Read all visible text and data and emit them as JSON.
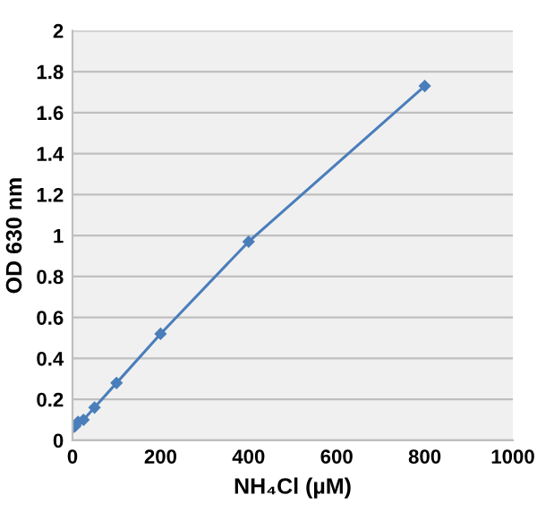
{
  "chart_data": {
    "type": "line",
    "xlabel": "NH₄Cl (µM)",
    "ylabel": "OD 630 nm",
    "x": [
      0,
      6.25,
      12.5,
      25,
      50,
      100,
      200,
      400,
      800
    ],
    "series": [
      {
        "color": "#4a7ebb",
        "values": [
          0.06,
          0.07,
          0.09,
          0.1,
          0.16,
          0.28,
          0.52,
          0.97,
          1.73
        ]
      }
    ],
    "xlim": [
      0,
      1000
    ],
    "xticks": [
      0,
      200,
      400,
      600,
      800,
      1000
    ],
    "ylim": [
      0,
      2
    ],
    "yticks": [
      0,
      0.2,
      0.4,
      0.6,
      0.8,
      1,
      1.2,
      1.4,
      1.6,
      1.8,
      2
    ],
    "grid": "y",
    "marker": "diamond",
    "line_style": "solid"
  }
}
